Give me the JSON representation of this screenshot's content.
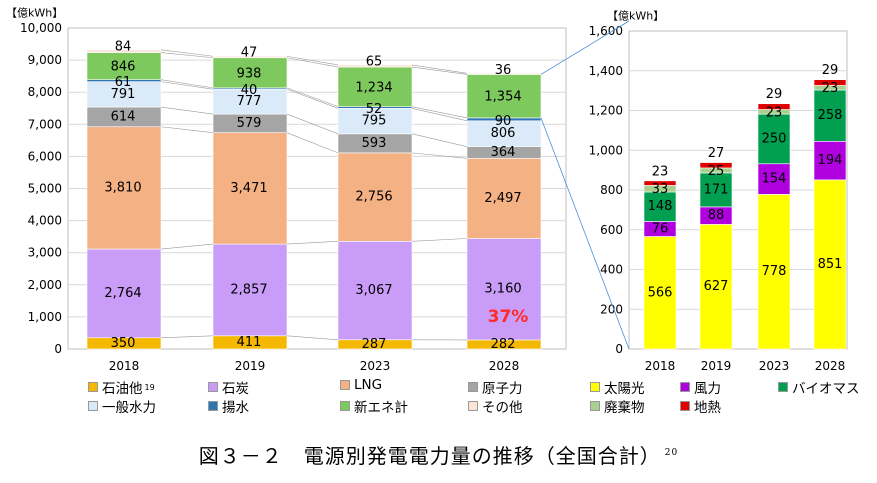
{
  "chart_data": [
    {
      "type": "bar",
      "stacked": true,
      "ylabel": "【億kWh】",
      "ylim": [
        0,
        10000
      ],
      "y_ticks": [
        "0",
        "1,000",
        "2,000",
        "3,000",
        "4,000",
        "5,000",
        "6,000",
        "7,000",
        "8,000",
        "9,000",
        "10,000"
      ],
      "categories": [
        "2018",
        "2019",
        "2023",
        "2028"
      ],
      "series": [
        {
          "name": "石油他",
          "color": "#f5b800",
          "values": [
            350,
            411,
            287,
            282
          ],
          "labels": [
            "350",
            "411",
            "287",
            "282"
          ]
        },
        {
          "name": "石炭",
          "color": "#c89cf7",
          "values": [
            2764,
            2857,
            3067,
            3160
          ],
          "labels": [
            "2,764",
            "2,857",
            "3,067",
            "3,160"
          ]
        },
        {
          "name": "LNG",
          "color": "#f4b183",
          "values": [
            3810,
            3471,
            2756,
            2497
          ],
          "labels": [
            "3,810",
            "3,471",
            "2,756",
            "2,497"
          ]
        },
        {
          "name": "原子力",
          "color": "#a5a5a5",
          "values": [
            614,
            579,
            593,
            364
          ],
          "labels": [
            "614",
            "579",
            "593",
            "364"
          ]
        },
        {
          "name": "一般水力",
          "color": "#dbeaf8",
          "values": [
            791,
            777,
            795,
            806
          ],
          "labels": [
            "791",
            "777",
            "795",
            "806"
          ]
        },
        {
          "name": "揚水",
          "color": "#2e75b6",
          "values": [
            61,
            40,
            52,
            90
          ],
          "labels": [
            "61",
            "40",
            "52",
            "90"
          ]
        },
        {
          "name": "新エネ計",
          "color": "#7dc95e",
          "values": [
            846,
            938,
            1234,
            1354
          ],
          "labels": [
            "846",
            "938",
            "1,234",
            "1,354"
          ]
        },
        {
          "name": "その他",
          "color": "#fbe5d6",
          "values": [
            84,
            47,
            65,
            36
          ],
          "labels": [
            "84",
            "47",
            "65",
            "36"
          ]
        }
      ],
      "annotations": [
        {
          "category": "2028",
          "text": "37%",
          "color": "#ff2a2a"
        }
      ]
    },
    {
      "type": "bar",
      "stacked": true,
      "ylabel": "【億kWh】",
      "ylim": [
        0,
        1600
      ],
      "y_ticks": [
        "0",
        "200",
        "400",
        "600",
        "800",
        "1,000",
        "1,200",
        "1,400",
        "1,600"
      ],
      "categories": [
        "2018",
        "2019",
        "2023",
        "2028"
      ],
      "series": [
        {
          "name": "太陽光",
          "color": "#ffff00",
          "values": [
            566,
            627,
            778,
            851
          ],
          "labels": [
            "566",
            "627",
            "778",
            "851"
          ]
        },
        {
          "name": "風力",
          "color": "#b000e0",
          "values": [
            76,
            88,
            154,
            194
          ],
          "labels": [
            "76",
            "88",
            "154",
            "194"
          ]
        },
        {
          "name": "バイオマス",
          "color": "#00a050",
          "values": [
            148,
            171,
            250,
            258
          ],
          "labels": [
            "148",
            "171",
            "250",
            "258"
          ]
        },
        {
          "name": "廃棄物",
          "color": "#a9d08e",
          "values": [
            33,
            25,
            23,
            23
          ],
          "labels": [
            "33",
            "25",
            "23",
            "23"
          ]
        },
        {
          "name": "地熱",
          "color": "#e00000",
          "values": [
            23,
            27,
            29,
            29
          ],
          "labels": [
            "23",
            "27",
            "29",
            "29"
          ]
        }
      ]
    }
  ],
  "legend": [
    {
      "label": "石油他",
      "sup": "19",
      "color": "#f5b800"
    },
    {
      "label": "石炭",
      "sup": "",
      "color": "#c89cf7"
    },
    {
      "label": "LNG",
      "sup": "",
      "color": "#f4b183"
    },
    {
      "label": "原子力",
      "sup": "",
      "color": "#a5a5a5"
    },
    {
      "label": "太陽光",
      "sup": "",
      "color": "#ffff00"
    },
    {
      "label": "風力",
      "sup": "",
      "color": "#b000e0"
    },
    {
      "label": "バイオマス",
      "sup": "",
      "color": "#00a050"
    },
    {
      "label": "一般水力",
      "sup": "",
      "color": "#dbeaf8"
    },
    {
      "label": "揚水",
      "sup": "",
      "color": "#2e75b6"
    },
    {
      "label": "新エネ計",
      "sup": "",
      "color": "#7dc95e"
    },
    {
      "label": "その他",
      "sup": "",
      "color": "#fbe5d6"
    },
    {
      "label": "廃棄物",
      "sup": "",
      "color": "#a9d08e"
    },
    {
      "label": "地熱",
      "sup": "",
      "color": "#e00000"
    }
  ],
  "caption": {
    "text": "図３－２　電源別発電電力量の推移（全国合計）",
    "sup": "20"
  }
}
